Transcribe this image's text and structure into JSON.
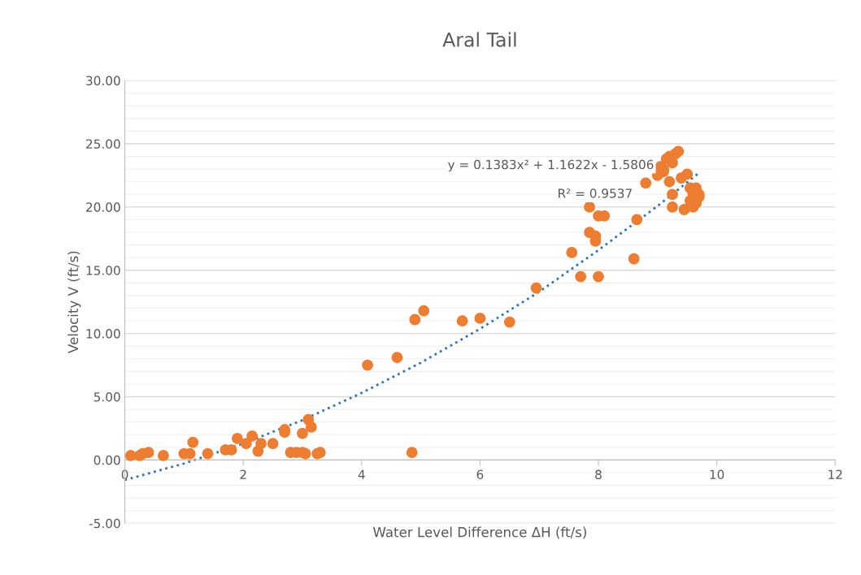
{
  "chart_data": {
    "type": "scatter",
    "title": "Aral Tail",
    "xlabel": "Water Level Difference ΔH (ft/s)",
    "ylabel": "Velocity V (ft/s)",
    "xlim": [
      0,
      12
    ],
    "xticks": [
      0,
      2,
      4,
      6,
      8,
      10,
      12
    ],
    "ylim": [
      -5,
      30
    ],
    "yticks": [
      {
        "value": -5,
        "label": "-5.00"
      },
      {
        "value": 0,
        "label": "0.00"
      },
      {
        "value": 5,
        "label": "5.00"
      },
      {
        "value": 10,
        "label": "10.00"
      },
      {
        "value": 15,
        "label": "15.00"
      },
      {
        "value": 20,
        "label": "20.00"
      },
      {
        "value": 25,
        "label": "25.00"
      },
      {
        "value": 30,
        "label": "30.00"
      }
    ],
    "grid": "y",
    "legend": false,
    "annotations": [
      "y = 0.1383x² + 1.1622x - 1.5806",
      "R² = 0.9537"
    ],
    "series": [
      {
        "color": "#ed7d31",
        "marker": "circle",
        "x": [
          0.1,
          0.25,
          0.3,
          0.4,
          0.65,
          1.0,
          1.1,
          1.15,
          1.4,
          1.7,
          1.8,
          1.9,
          2.05,
          2.15,
          2.25,
          2.3,
          2.5,
          2.7,
          2.7,
          2.8,
          2.9,
          3.0,
          3.05,
          3.0,
          3.1,
          3.15,
          3.25,
          3.3,
          4.1,
          4.6,
          4.85,
          4.9,
          5.05,
          5.7,
          6.0,
          6.5,
          6.95,
          7.55,
          7.7,
          7.85,
          7.85,
          7.95,
          7.95,
          8.0,
          8.0,
          8.1,
          8.6,
          8.65,
          8.8,
          9.05,
          9.1,
          9.15,
          9.2,
          9.25,
          9.3,
          9.35,
          9.2,
          9.25,
          9.25,
          9.4,
          9.45,
          9.5,
          9.55,
          9.55,
          9.6,
          9.6,
          9.65,
          9.7,
          9.65,
          9.7,
          9.1,
          9.0
        ],
        "values": [
          0.35,
          0.35,
          0.5,
          0.6,
          0.35,
          0.5,
          0.5,
          1.4,
          0.5,
          0.8,
          0.8,
          1.7,
          1.3,
          1.9,
          0.7,
          1.3,
          1.3,
          2.4,
          2.2,
          0.6,
          0.6,
          0.6,
          0.5,
          2.1,
          3.2,
          2.6,
          0.5,
          0.6,
          7.5,
          8.1,
          0.6,
          11.1,
          11.8,
          11.0,
          11.2,
          10.9,
          13.6,
          16.4,
          14.5,
          20.0,
          18.0,
          17.7,
          17.3,
          19.3,
          14.5,
          19.3,
          15.9,
          19.0,
          21.9,
          23.2,
          22.8,
          23.8,
          24.0,
          23.5,
          24.2,
          24.4,
          22.0,
          21.0,
          20.0,
          22.3,
          19.8,
          22.6,
          21.5,
          20.5,
          20.0,
          21.0,
          21.5,
          21.0,
          20.3,
          20.8,
          23.0,
          22.5
        ]
      },
      {
        "type": "line",
        "color": "#2e75b6",
        "line_style": "dotted",
        "marker": "none",
        "x": [
          0,
          1,
          2,
          3,
          4,
          5,
          6,
          7,
          8,
          9,
          9.7
        ],
        "values": [
          -1.58,
          -0.28,
          1.3,
          3.15,
          5.3,
          7.69,
          10.37,
          13.3,
          16.59,
          20.08,
          22.7
        ]
      }
    ]
  }
}
